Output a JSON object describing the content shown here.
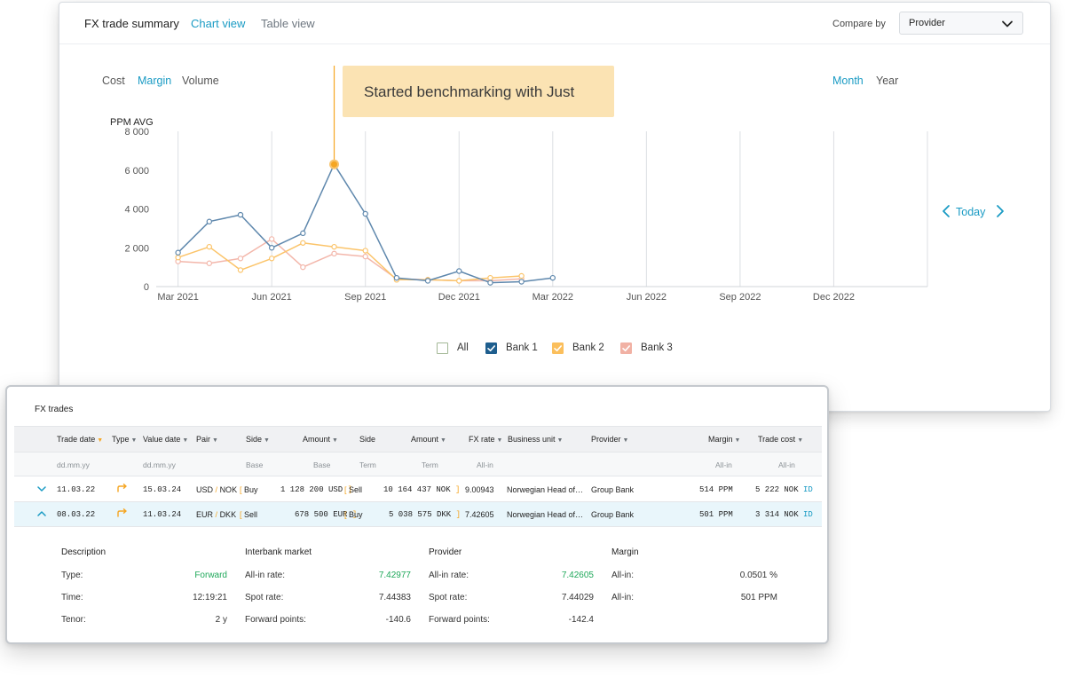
{
  "chart_window": {
    "title": "FX trade summary",
    "tabs": [
      {
        "label": "Chart view",
        "active": true
      },
      {
        "label": "Table view",
        "active": false
      }
    ],
    "compare_by_label": "Compare by",
    "compare_by_value": "Provider",
    "metric_tabs": [
      {
        "label": "Cost",
        "active": false
      },
      {
        "label": "Margin",
        "active": true
      },
      {
        "label": "Volume",
        "active": false
      }
    ],
    "period_tabs": [
      {
        "label": "Month",
        "active": true
      },
      {
        "label": "Year",
        "active": false
      }
    ],
    "callout_text": "Started benchmarking with Just",
    "today_label": "Today",
    "legend": [
      {
        "label": "All",
        "checked": false,
        "color": "#ffffff",
        "border": "#a3b896"
      },
      {
        "label": "Bank 1",
        "checked": true,
        "color": "#1e5e8e"
      },
      {
        "label": "Bank 2",
        "checked": true,
        "color": "#fbbf5c"
      },
      {
        "label": "Bank 3",
        "checked": true,
        "color": "#f1b1a4"
      }
    ]
  },
  "chart_data": {
    "type": "line",
    "ylabel": "PPM AVG",
    "ylim": [
      0,
      8000
    ],
    "yticks": [
      "8 000",
      "6 000",
      "4 000",
      "2 000",
      "0"
    ],
    "ytick_values": [
      8000,
      6000,
      4000,
      2000,
      0
    ],
    "xtick_labels": [
      "Mar 2021",
      "Jun 2021",
      "Sep 2021",
      "Dec 2021",
      "Mar 2022",
      "Jun 2022",
      "Sep 2022",
      "Dec 2022"
    ],
    "xtick_months": [
      0,
      3,
      6,
      9,
      12,
      15,
      18,
      21
    ],
    "xlim_months": [
      -0.7,
      24.0
    ],
    "annotation": {
      "label": "Started benchmarking with Just",
      "month": 5,
      "value": 6300
    },
    "grid": true,
    "legend_position": "bottom-center",
    "series": [
      {
        "name": "Bank 1",
        "color": "#5f88ad",
        "months": [
          0,
          1,
          2,
          3,
          4,
          5,
          6,
          7,
          8,
          9,
          10,
          11,
          12
        ],
        "values": [
          1750,
          3350,
          3700,
          2000,
          2750,
          6300,
          3750,
          450,
          300,
          800,
          200,
          250,
          450
        ]
      },
      {
        "name": "Bank 2",
        "color": "#fbc46a",
        "months": [
          0,
          1,
          2,
          3,
          4,
          5,
          6,
          7,
          8,
          9,
          10,
          11
        ],
        "values": [
          1500,
          2050,
          850,
          1450,
          2250,
          2050,
          1850,
          350,
          350,
          300,
          450,
          550
        ]
      },
      {
        "name": "Bank 3",
        "color": "#f3b7ab",
        "months": [
          0,
          1,
          2,
          3,
          4,
          5,
          6,
          7,
          8,
          9,
          10,
          11
        ],
        "values": [
          1300,
          1200,
          1450,
          2450,
          1000,
          1700,
          1550,
          400,
          350,
          300,
          300,
          400
        ]
      }
    ]
  },
  "trades": {
    "title": "FX trades",
    "headers": {
      "trade_date": "Trade date",
      "type": "Type",
      "value_date": "Value date",
      "pair": "Pair",
      "side_base": "Side",
      "amount_base": "Amount",
      "side_term": "Side",
      "amount_term": "Amount",
      "fx_rate": "FX rate",
      "business_unit": "Business unit",
      "provider": "Provider",
      "margin": "Margin",
      "trade_cost": "Trade cost"
    },
    "subheaders": {
      "trade_date": "dd.mm.yy",
      "value_date": "dd.mm.yy",
      "side_base": "Base",
      "amount_base": "Base",
      "side_term": "Term",
      "amount_term": "Term",
      "fx_rate": "All-in",
      "margin": "All-in",
      "trade_cost": "All-in"
    },
    "rows": [
      {
        "trade_date": "11.03.22",
        "value_date": "15.03.24",
        "pair_base": "USD",
        "pair_sep": "/",
        "pair_term": "NOK",
        "side_base": "Buy",
        "amount_base": "1 128 200 USD",
        "side_term": "Sell",
        "amount_term": "10 164 437 NOK",
        "fx_rate": "9.00943",
        "business_unit": "Norwegian Head of…",
        "provider": "Group Bank",
        "margin": "514 PPM",
        "trade_cost": "5 222 NOK",
        "link": "ID"
      },
      {
        "trade_date": "08.03.22",
        "value_date": "11.03.24",
        "pair_base": "EUR",
        "pair_sep": "/",
        "pair_term": "DKK",
        "side_base": "Sell",
        "amount_base": "678 500 EUR",
        "side_term": "Buy",
        "amount_term": "5 038 575 DKK",
        "fx_rate": "7.42605",
        "business_unit": "Norwegian Head of…",
        "provider": "Group Bank",
        "margin": "501 PPM",
        "trade_cost": "3 314 NOK",
        "link": "ID"
      }
    ],
    "open_bracket": "[",
    "close_bracket": "]",
    "details": {
      "description": {
        "heading": "Description",
        "rows": [
          {
            "label": "Type:",
            "value": "Forward"
          },
          {
            "label": "Time:",
            "value": "12:19:21"
          },
          {
            "label": "Tenor:",
            "value": "2 y"
          }
        ]
      },
      "interbank": {
        "heading": "Interbank market",
        "rows": [
          {
            "label": "All-in rate:",
            "value": "7.42977"
          },
          {
            "label": "Spot rate:",
            "value": "7.44383"
          },
          {
            "label": "Forward points:",
            "value": "-140.6"
          }
        ]
      },
      "provider": {
        "heading": "Provider",
        "rows": [
          {
            "label": "All-in rate:",
            "value": "7.42605"
          },
          {
            "label": "Spot rate:",
            "value": "7.44029"
          },
          {
            "label": "Forward points:",
            "value": "-142.4"
          }
        ]
      },
      "margin": {
        "heading": "Margin",
        "rows": [
          {
            "label": "All-in:",
            "value": "0.0501 %"
          },
          {
            "label": "All-in:",
            "value": "501 PPM"
          }
        ]
      }
    }
  }
}
